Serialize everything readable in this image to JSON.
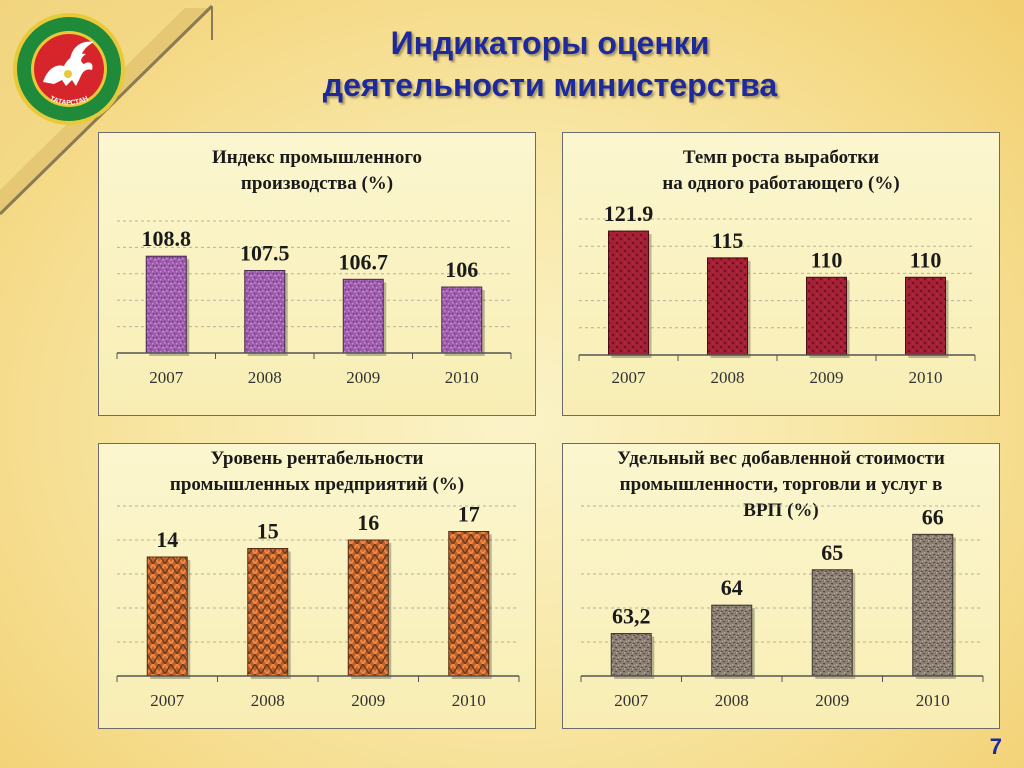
{
  "title": {
    "line1": "Индикаторы оценки",
    "line2": "деятельности министерства"
  },
  "emblem": {
    "text": "ТАТАРСТАН",
    "colors": {
      "ring": "#1e8a3a",
      "field": "#d6262b",
      "animal": "#ffffff",
      "border": "#e8c93a"
    }
  },
  "slide_number": "7",
  "chart_data": [
    {
      "type": "bar",
      "title_lines": [
        "Индекс промышленного",
        "производства (%)"
      ],
      "categories": [
        "2007",
        "2008",
        "2009",
        "2010"
      ],
      "values": [
        108.8,
        107.5,
        106.7,
        106
      ],
      "value_labels": [
        "108.8",
        "107.5",
        "106.7",
        "106"
      ],
      "ylim": [
        100,
        112
      ],
      "grid": true,
      "color": "#9a5fa8",
      "pattern": "speckle"
    },
    {
      "type": "bar",
      "title_lines": [
        "Темп роста выработки",
        "на одного работающего (%)"
      ],
      "categories": [
        "2007",
        "2008",
        "2009",
        "2010"
      ],
      "values": [
        121.9,
        115,
        110,
        110
      ],
      "value_labels": [
        "121.9",
        "115",
        "110",
        "110"
      ],
      "ylim": [
        90,
        125
      ],
      "grid": true,
      "color": "#a32035",
      "pattern": "dots"
    },
    {
      "type": "bar",
      "title_lines": [
        "Уровень рентабельности",
        "промышленных предприятий (%)"
      ],
      "categories": [
        "2007",
        "2008",
        "2009",
        "2010"
      ],
      "values": [
        14,
        15,
        16,
        17
      ],
      "value_labels": [
        "14",
        "15",
        "16",
        "17"
      ],
      "ylim": [
        0,
        20
      ],
      "grid": true,
      "color": "#b8622e",
      "pattern": "weave"
    },
    {
      "type": "bar",
      "title_lines": [
        "Удельный вес добавленной стоимости",
        "промышленности, торговли и услуг в",
        "ВРП (%)"
      ],
      "categories": [
        "2007",
        "2008",
        "2009",
        "2010"
      ],
      "values": [
        63.2,
        64,
        65,
        66
      ],
      "value_labels": [
        "63,2",
        "64",
        "65",
        "66"
      ],
      "ylim": [
        62,
        66.8
      ],
      "grid": true,
      "color": "#8a7d72",
      "pattern": "granite"
    }
  ]
}
